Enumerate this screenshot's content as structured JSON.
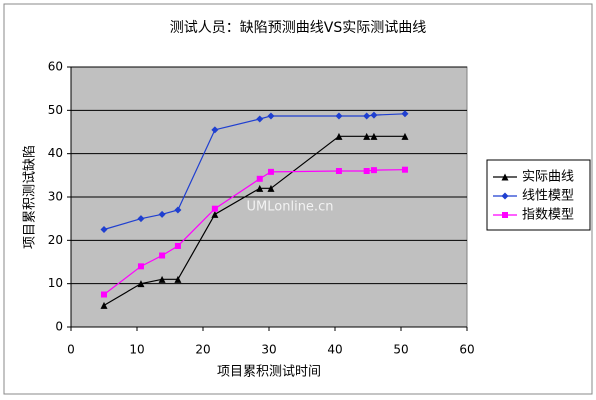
{
  "chart_data": {
    "type": "line",
    "title": "测试人员：缺陷预测曲线VS实际测试曲线",
    "x_label": "项目累积测试时间",
    "y_label": "项目累积测试缺陷",
    "watermark": "UMLonline.cn",
    "x": [
      5,
      10.6,
      13.8,
      16.2,
      21.8,
      28.6,
      30.3,
      40.6,
      44.8,
      45.9,
      50.6
    ],
    "series": [
      {
        "name": "实际曲线",
        "color": "#000000",
        "marker": "triangle",
        "values": [
          5,
          10,
          11,
          11,
          26,
          32,
          32,
          44,
          44,
          44,
          44
        ]
      },
      {
        "name": "线性模型",
        "color": "#1f3fd0",
        "marker": "diamond",
        "values": [
          22.5,
          25,
          26,
          27,
          45.5,
          48,
          48.7,
          48.7,
          48.7,
          48.9,
          49.2
        ]
      },
      {
        "name": "指数模型",
        "color": "#ff00ff",
        "marker": "square",
        "values": [
          7.5,
          14,
          16.5,
          18.7,
          27.3,
          34.2,
          35.8,
          36,
          36,
          36.2,
          36.3
        ]
      }
    ],
    "xlim": [
      0,
      60
    ],
    "xticks": [
      0,
      10,
      20,
      30,
      40,
      50,
      60
    ],
    "ylim": [
      0,
      60
    ],
    "yticks": [
      0,
      10,
      20,
      30,
      40,
      50,
      60
    ],
    "grid": true,
    "legend": "right"
  }
}
